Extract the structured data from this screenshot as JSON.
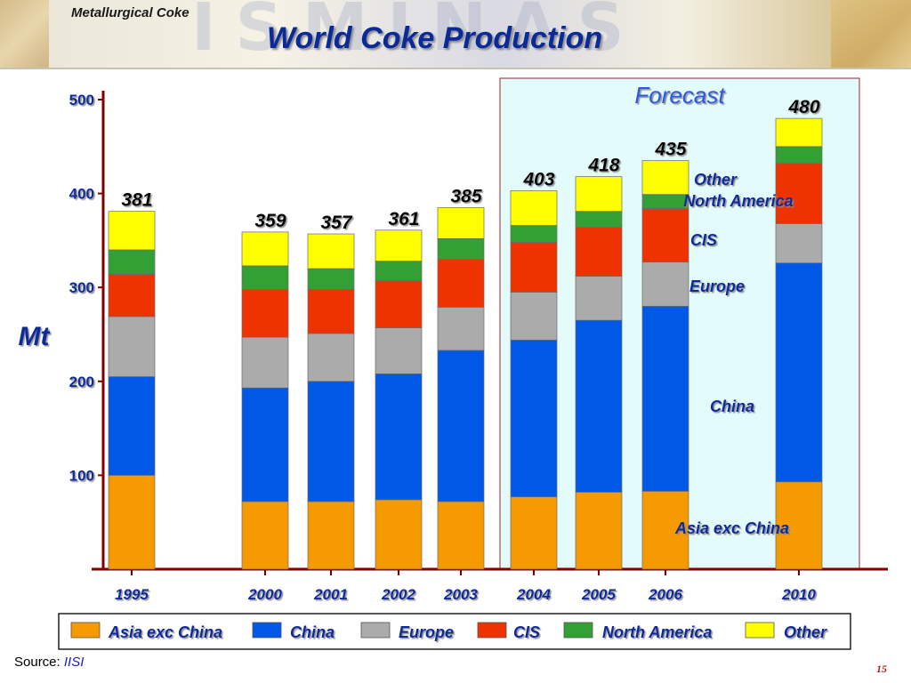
{
  "header": {
    "section_title": "Metallurgical Coke",
    "main_title": "World Coke Production"
  },
  "chart_data": {
    "type": "bar",
    "stacked": true,
    "title": "World Coke Production",
    "ylabel": "Mt",
    "xlabel": "",
    "ylim": [
      0,
      500
    ],
    "yticks": [
      100,
      200,
      300,
      400,
      500
    ],
    "categories": [
      "1995",
      "2000",
      "2001",
      "2002",
      "2003",
      "2004",
      "2005",
      "2006",
      "2010"
    ],
    "totals": [
      381,
      359,
      357,
      361,
      385,
      403,
      418,
      435,
      480
    ],
    "series": [
      {
        "name": "Asia exc China",
        "color": "#f59a00",
        "values": [
          100,
          72,
          72,
          74,
          72,
          77,
          82,
          83,
          93
        ]
      },
      {
        "name": "China",
        "color": "#0058e6",
        "values": [
          105,
          121,
          128,
          134,
          161,
          167,
          183,
          197,
          233
        ]
      },
      {
        "name": "Europe",
        "color": "#ababab",
        "values": [
          64,
          54,
          51,
          49,
          46,
          51,
          47,
          47,
          42
        ]
      },
      {
        "name": "CIS",
        "color": "#ee3300",
        "values": [
          45,
          51,
          47,
          50,
          51,
          53,
          52,
          57,
          64
        ]
      },
      {
        "name": "North America",
        "color": "#33a033",
        "values": [
          26,
          25,
          22,
          21,
          22,
          18,
          17,
          15,
          18
        ]
      },
      {
        "name": "Other",
        "color": "#ffff00",
        "values": [
          41,
          36,
          37,
          33,
          33,
          37,
          37,
          36,
          30
        ]
      }
    ],
    "forecast_label": "Forecast",
    "forecast_start_category": "2004",
    "legend_position": "bottom",
    "grid": false
  },
  "source": {
    "label": "Source:",
    "org": "IISI"
  },
  "page_number": "15"
}
